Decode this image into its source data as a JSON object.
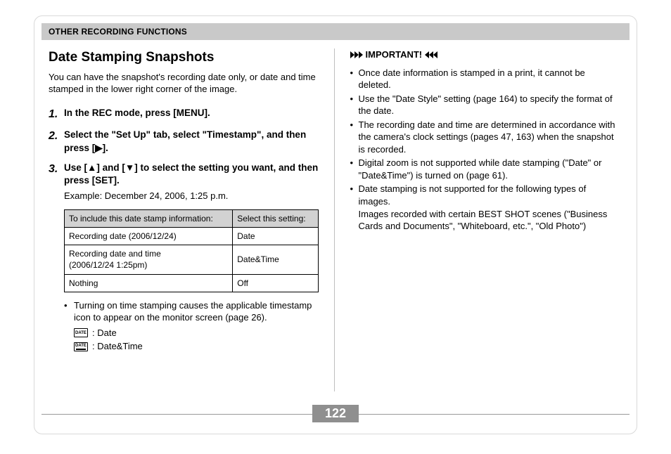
{
  "header": {
    "section_title": "OTHER RECORDING FUNCTIONS"
  },
  "left": {
    "title": "Date Stamping Snapshots",
    "intro": "You can have the snapshot's recording date only, or date and time stamped in the lower right corner of the image.",
    "steps": [
      {
        "num": "1.",
        "main": "In the REC mode, press [MENU]."
      },
      {
        "num": "2.",
        "main": "Select the \"Set Up\" tab, select \"Timestamp\", and then press [▶]."
      },
      {
        "num": "3.",
        "main": "Use [▲] and [▼] to select the setting you want, and then press [SET].",
        "sub": "Example: December 24, 2006, 1:25 p.m."
      }
    ],
    "table": {
      "headers": [
        "To include this date stamp information:",
        "Select this setting:"
      ],
      "rows": [
        [
          "Recording date (2006/12/24)",
          "Date"
        ],
        [
          "Recording date and time\n(2006/12/24 1:25pm)",
          "Date&Time"
        ],
        [
          "Nothing",
          "Off"
        ]
      ]
    },
    "bullet": "Turning on time stamping causes the applicable timestamp icon to appear on the monitor screen (page 26).",
    "icon_labels": {
      "date": "DATE",
      "date_caption": ": Date",
      "datetime_caption": ": Date&Time"
    }
  },
  "right": {
    "important_label": "IMPORTANT!",
    "items": [
      "Once date information is stamped in a print, it cannot be deleted.",
      "Use the \"Date Style\" setting (page 164) to specify the format of the date.",
      "The recording date and time are determined in accordance with the camera's clock settings (pages 47, 163) when the snapshot is recorded.",
      "Digital zoom is not supported while date stamping (\"Date\" or \"Date&Time\") is turned on (page 61).",
      "Date stamping is not supported for the following types of images."
    ],
    "item5_sub": "Images recorded with certain BEST SHOT scenes (\"Business Cards and Documents\", \"Whiteboard, etc.\", \"Old Photo\")"
  },
  "footer": {
    "page_number": "122"
  },
  "colors": {
    "band_bg": "#c9c9c9",
    "table_header_bg": "#d2d2d2",
    "page_border": "#d9d9d9",
    "pagenum_bg": "#8f8f8f",
    "text": "#000000"
  }
}
